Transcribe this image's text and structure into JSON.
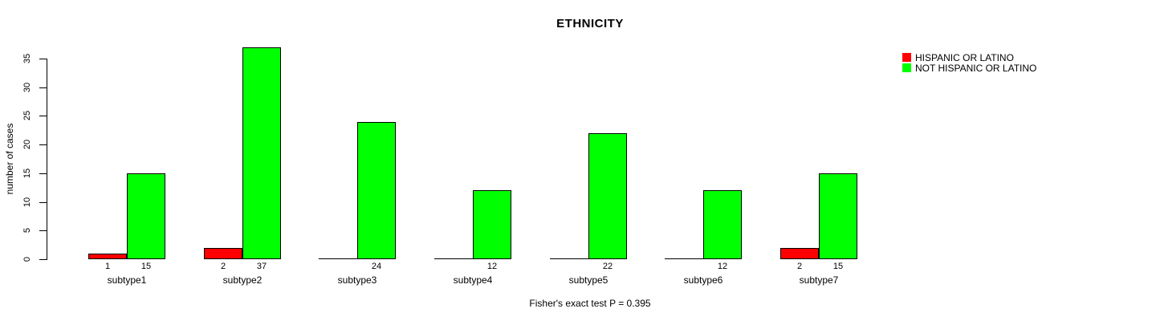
{
  "chart_data": {
    "type": "bar",
    "title": "ETHNICITY",
    "ylabel": "number of cases",
    "xlabel": "",
    "footnote": "Fisher's exact test P = 0.395",
    "categories": [
      "subtype1",
      "subtype2",
      "subtype3",
      "subtype4",
      "subtype5",
      "subtype6",
      "subtype7"
    ],
    "series": [
      {
        "name": "HISPANIC OR LATINO",
        "color": "#ff0000",
        "values": [
          1,
          2,
          0,
          0,
          0,
          0,
          2
        ]
      },
      {
        "name": "NOT HISPANIC OR LATINO",
        "color": "#00ff00",
        "values": [
          15,
          37,
          24,
          12,
          22,
          12,
          15
        ]
      }
    ],
    "yticks": [
      0,
      5,
      10,
      15,
      20,
      25,
      30,
      35
    ],
    "ylim": [
      0,
      37
    ],
    "grid": false,
    "legend_position": "top-right",
    "bar_value_labels": "shown below baseline, hidden for zero values",
    "background_color": "#ffffff",
    "axis_color": "#000000"
  }
}
